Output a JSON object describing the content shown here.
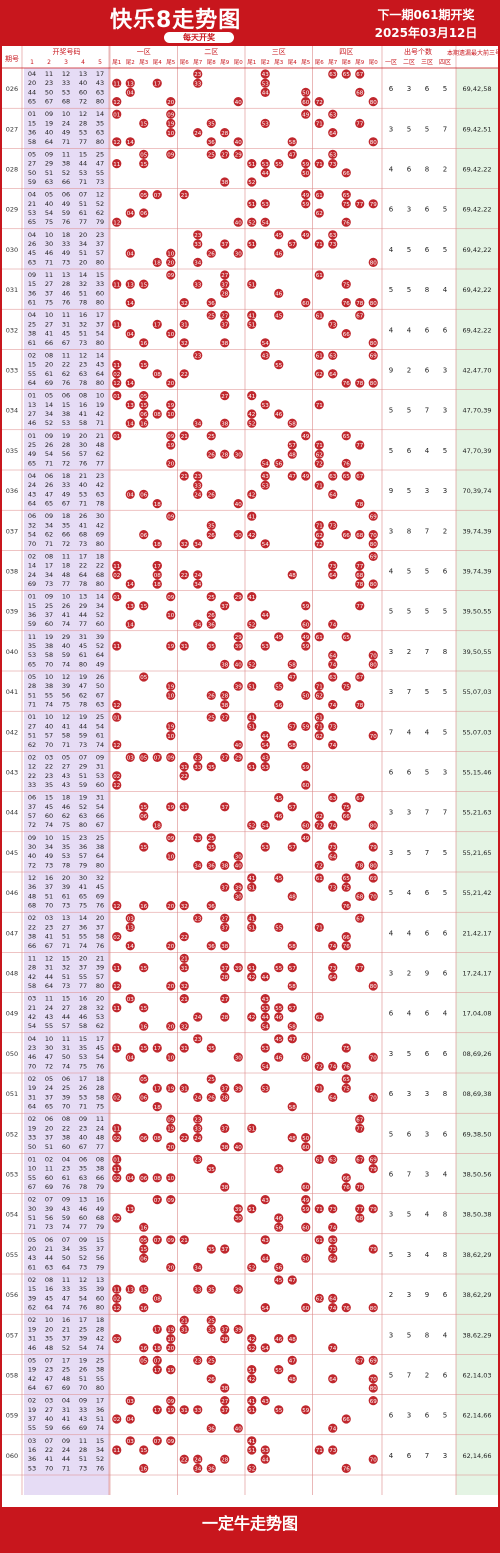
{
  "header": {
    "title": "快乐8走势图",
    "subtitle": "每天开奖",
    "next_draw": "下一期061期开奖",
    "date": "2025年03月12日"
  },
  "footer": {
    "label": "一定牛走势图"
  },
  "colors": {
    "brand": "#c8161d",
    "ball": "#c0272d",
    "left_zone": "#e6dcf5",
    "right_zone": "#e4f4e4"
  },
  "chart_data": {
    "type": "table",
    "columns": {
      "issue": "期号",
      "winning_numbers": "开奖号码",
      "zones": [
        "一区",
        "二区",
        "三区",
        "四区"
      ],
      "tails": [
        "尾1",
        "尾2",
        "尾3",
        "尾4",
        "尾5",
        "尾6",
        "尾7",
        "尾8",
        "尾9",
        "尾0",
        "尾1",
        "尾2",
        "尾3",
        "尾4",
        "尾5",
        "尾6",
        "尾7",
        "尾8",
        "尾9",
        "尾0"
      ],
      "zone_counts_group": "出号个数",
      "zone_counts": [
        "一区",
        "二区",
        "三区",
        "四区"
      ],
      "prev_three": "本期遗漏最大前三号码"
    },
    "rows": [
      {
        "issue": "026",
        "numbers": [
          4,
          11,
          12,
          13,
          17,
          20,
          23,
          33,
          40,
          43,
          44,
          50,
          53,
          60,
          63,
          65,
          67,
          68,
          72,
          80
        ],
        "counts": [
          6,
          3,
          6,
          5
        ],
        "max3": "69,42,58"
      },
      {
        "issue": "027",
        "numbers": [
          1,
          9,
          10,
          12,
          14,
          15,
          19,
          24,
          28,
          35,
          36,
          40,
          49,
          53,
          63,
          58,
          64,
          71,
          77,
          80
        ],
        "counts": [
          3,
          5,
          5,
          7
        ],
        "max3": "69,42,51"
      },
      {
        "issue": "028",
        "numbers": [
          5,
          9,
          11,
          15,
          25,
          27,
          29,
          38,
          44,
          47,
          50,
          51,
          52,
          53,
          55,
          59,
          63,
          66,
          71,
          73
        ],
        "counts": [
          4,
          6,
          8,
          2
        ],
        "max3": "69,42,22"
      },
      {
        "issue": "029",
        "numbers": [
          4,
          5,
          6,
          7,
          12,
          21,
          40,
          49,
          51,
          52,
          53,
          54,
          59,
          61,
          62,
          65,
          75,
          76,
          77,
          79
        ],
        "counts": [
          6,
          3,
          6,
          5
        ],
        "max3": "69,42,22"
      },
      {
        "issue": "030",
        "numbers": [
          4,
          10,
          18,
          20,
          23,
          26,
          30,
          33,
          34,
          37,
          45,
          46,
          49,
          51,
          57,
          63,
          71,
          73,
          20,
          80
        ],
        "counts": [
          4,
          5,
          6,
          5
        ],
        "max3": "69,42,22"
      },
      {
        "issue": "031",
        "numbers": [
          9,
          11,
          13,
          14,
          15,
          15,
          27,
          28,
          32,
          33,
          36,
          37,
          46,
          51,
          60,
          61,
          75,
          76,
          78,
          80
        ],
        "counts": [
          5,
          5,
          8,
          4
        ],
        "max3": "69,42,22"
      },
      {
        "issue": "032",
        "numbers": [
          4,
          10,
          11,
          16,
          17,
          25,
          27,
          31,
          32,
          37,
          38,
          41,
          45,
          51,
          54,
          61,
          66,
          67,
          73,
          80
        ],
        "counts": [
          4,
          4,
          6,
          6
        ],
        "max3": "69,42,22"
      },
      {
        "issue": "033",
        "numbers": [
          2,
          8,
          11,
          12,
          14,
          15,
          20,
          22,
          23,
          43,
          55,
          61,
          62,
          63,
          64,
          64,
          69,
          76,
          78,
          80
        ],
        "counts": [
          9,
          2,
          6,
          3
        ],
        "max3": "42,47,70"
      },
      {
        "issue": "034",
        "numbers": [
          1,
          5,
          6,
          8,
          10,
          13,
          14,
          15,
          16,
          19,
          27,
          34,
          38,
          41,
          42,
          46,
          52,
          53,
          58,
          71
        ],
        "counts": [
          5,
          5,
          7,
          3
        ],
        "max3": "47,70,39"
      },
      {
        "issue": "035",
        "numbers": [
          1,
          9,
          19,
          20,
          21,
          25,
          26,
          28,
          30,
          48,
          49,
          54,
          56,
          57,
          62,
          65,
          71,
          72,
          76,
          77
        ],
        "counts": [
          5,
          6,
          4,
          5
        ],
        "max3": "47,70,39"
      },
      {
        "issue": "036",
        "numbers": [
          4,
          6,
          18,
          21,
          23,
          24,
          26,
          33,
          40,
          42,
          43,
          47,
          49,
          53,
          63,
          64,
          65,
          67,
          71,
          78
        ],
        "counts": [
          9,
          5,
          3,
          3
        ],
        "max3": "70,39,74"
      },
      {
        "issue": "037",
        "numbers": [
          6,
          9,
          18,
          26,
          30,
          32,
          34,
          35,
          41,
          42,
          54,
          62,
          66,
          68,
          69,
          70,
          71,
          72,
          73,
          80
        ],
        "counts": [
          3,
          8,
          7,
          2
        ],
        "max3": "39,74,39"
      },
      {
        "issue": "038",
        "numbers": [
          2,
          8,
          11,
          17,
          18,
          14,
          17,
          18,
          22,
          22,
          24,
          34,
          48,
          64,
          68,
          69,
          73,
          77,
          78,
          80
        ],
        "counts": [
          4,
          5,
          5,
          6
        ],
        "max3": "39,74,39"
      },
      {
        "issue": "039",
        "numbers": [
          1,
          9,
          10,
          13,
          14,
          15,
          25,
          26,
          29,
          34,
          36,
          37,
          41,
          44,
          52,
          59,
          60,
          74,
          77,
          60
        ],
        "counts": [
          5,
          5,
          5,
          5
        ],
        "max3": "39,50,55"
      },
      {
        "issue": "040",
        "numbers": [
          11,
          19,
          29,
          31,
          39,
          35,
          38,
          40,
          45,
          52,
          53,
          58,
          59,
          61,
          64,
          65,
          70,
          74,
          80,
          49
        ],
        "counts": [
          3,
          2,
          7,
          8
        ],
        "max3": "39,50,55"
      },
      {
        "issue": "041",
        "numbers": [
          5,
          10,
          12,
          19,
          26,
          28,
          38,
          39,
          47,
          50,
          51,
          55,
          56,
          62,
          67,
          71,
          74,
          75,
          78,
          63
        ],
        "counts": [
          3,
          7,
          5,
          5
        ],
        "max3": "55,07,03"
      },
      {
        "issue": "042",
        "numbers": [
          1,
          10,
          12,
          19,
          25,
          27,
          40,
          41,
          44,
          54,
          51,
          57,
          58,
          59,
          61,
          62,
          70,
          71,
          73,
          74
        ],
        "counts": [
          7,
          4,
          4,
          5
        ],
        "max3": "55,07,03"
      },
      {
        "issue": "043",
        "numbers": [
          2,
          3,
          5,
          7,
          9,
          12,
          22,
          27,
          29,
          31,
          22,
          23,
          43,
          51,
          53,
          33,
          35,
          43,
          59,
          60
        ],
        "counts": [
          6,
          6,
          5,
          3
        ],
        "max3": "55,15,46"
      },
      {
        "issue": "044",
        "numbers": [
          6,
          15,
          18,
          19,
          31,
          37,
          45,
          46,
          52,
          54,
          57,
          60,
          62,
          63,
          66,
          72,
          74,
          75,
          80,
          67
        ],
        "counts": [
          3,
          3,
          7,
          7
        ],
        "max3": "55,21,63"
      },
      {
        "issue": "045",
        "numbers": [
          9,
          10,
          15,
          23,
          25,
          30,
          34,
          35,
          36,
          38,
          40,
          49,
          53,
          57,
          64,
          72,
          73,
          78,
          79,
          80
        ],
        "counts": [
          3,
          5,
          7,
          5
        ],
        "max3": "55,21,65"
      },
      {
        "issue": "046",
        "numbers": [
          12,
          16,
          20,
          30,
          32,
          36,
          37,
          39,
          41,
          45,
          48,
          51,
          61,
          65,
          69,
          68,
          70,
          73,
          75,
          76
        ],
        "counts": [
          5,
          4,
          6,
          5
        ],
        "max3": "55,21,42"
      },
      {
        "issue": "047",
        "numbers": [
          2,
          3,
          13,
          14,
          20,
          22,
          23,
          27,
          36,
          37,
          38,
          41,
          51,
          55,
          58,
          66,
          67,
          71,
          74,
          76
        ],
        "counts": [
          4,
          4,
          6,
          6
        ],
        "max3": "21,42,17"
      },
      {
        "issue": "048",
        "numbers": [
          11,
          12,
          15,
          20,
          21,
          28,
          31,
          32,
          37,
          39,
          42,
          44,
          51,
          55,
          57,
          58,
          64,
          73,
          77,
          80
        ],
        "counts": [
          3,
          2,
          9,
          6
        ],
        "max3": "17,24,17"
      },
      {
        "issue": "049",
        "numbers": [
          3,
          11,
          15,
          16,
          20,
          21,
          24,
          27,
          28,
          32,
          42,
          43,
          44,
          46,
          53,
          54,
          55,
          57,
          58,
          62
        ],
        "counts": [
          6,
          4,
          6,
          4
        ],
        "max3": "17,04,08"
      },
      {
        "issue": "050",
        "numbers": [
          4,
          10,
          11,
          15,
          17,
          23,
          30,
          31,
          35,
          45,
          46,
          47,
          50,
          53,
          54,
          70,
          72,
          74,
          75,
          76
        ],
        "counts": [
          3,
          5,
          6,
          6
        ],
        "max3": "08,69,26"
      },
      {
        "issue": "051",
        "numbers": [
          2,
          5,
          6,
          17,
          18,
          19,
          24,
          25,
          26,
          28,
          31,
          37,
          39,
          53,
          58,
          64,
          65,
          70,
          71,
          75
        ],
        "counts": [
          6,
          3,
          3,
          8
        ],
        "max3": "08,69,38"
      },
      {
        "issue": "052",
        "numbers": [
          2,
          6,
          8,
          9,
          11,
          19,
          20,
          22,
          23,
          24,
          33,
          37,
          38,
          40,
          48,
          50,
          51,
          60,
          67,
          77
        ],
        "counts": [
          5,
          6,
          3,
          6
        ],
        "max3": "69,38,50"
      },
      {
        "issue": "053",
        "numbers": [
          1,
          2,
          4,
          6,
          8,
          10,
          11,
          23,
          35,
          38,
          55,
          60,
          61,
          63,
          66,
          67,
          69,
          76,
          78,
          79
        ],
        "counts": [
          6,
          7,
          3,
          4
        ],
        "max3": "38,50,56"
      },
      {
        "issue": "054",
        "numbers": [
          2,
          7,
          9,
          13,
          16,
          30,
          39,
          43,
          46,
          49,
          51,
          56,
          59,
          60,
          68,
          71,
          73,
          74,
          77,
          79
        ],
        "counts": [
          3,
          5,
          4,
          8
        ],
        "max3": "38,50,38"
      },
      {
        "issue": "055",
        "numbers": [
          5,
          6,
          7,
          9,
          15,
          20,
          21,
          34,
          35,
          37,
          43,
          44,
          50,
          52,
          56,
          61,
          63,
          64,
          73,
          79
        ],
        "counts": [
          5,
          3,
          4,
          8
        ],
        "max3": "38,62,29"
      },
      {
        "issue": "056",
        "numbers": [
          2,
          8,
          11,
          12,
          13,
          15,
          16,
          33,
          35,
          39,
          39,
          45,
          47,
          54,
          60,
          62,
          64,
          74,
          76,
          80
        ],
        "counts": [
          2,
          3,
          9,
          6
        ],
        "max3": "38,62,29"
      },
      {
        "issue": "057",
        "numbers": [
          2,
          10,
          16,
          17,
          18,
          19,
          20,
          21,
          25,
          28,
          31,
          35,
          37,
          39,
          42,
          46,
          48,
          52,
          54,
          74
        ],
        "counts": [
          3,
          5,
          8,
          4
        ],
        "max3": "38,62,29"
      },
      {
        "issue": "058",
        "numbers": [
          5,
          7,
          17,
          19,
          25,
          19,
          23,
          25,
          26,
          38,
          42,
          47,
          48,
          51,
          55,
          64,
          67,
          69,
          70,
          80
        ],
        "counts": [
          5,
          7,
          2,
          6
        ],
        "max3": "62,14,03"
      },
      {
        "issue": "059",
        "numbers": [
          2,
          3,
          4,
          9,
          17,
          19,
          27,
          31,
          33,
          36,
          37,
          40,
          41,
          43,
          51,
          55,
          59,
          66,
          69,
          74
        ],
        "counts": [
          6,
          3,
          6,
          5
        ],
        "max3": "62,14,66"
      },
      {
        "issue": "060",
        "numbers": [
          3,
          7,
          9,
          11,
          15,
          16,
          22,
          24,
          28,
          34,
          36,
          41,
          44,
          51,
          52,
          53,
          70,
          71,
          73,
          76
        ],
        "counts": [
          4,
          6,
          7,
          3
        ],
        "max3": "62,14,66"
      }
    ]
  }
}
